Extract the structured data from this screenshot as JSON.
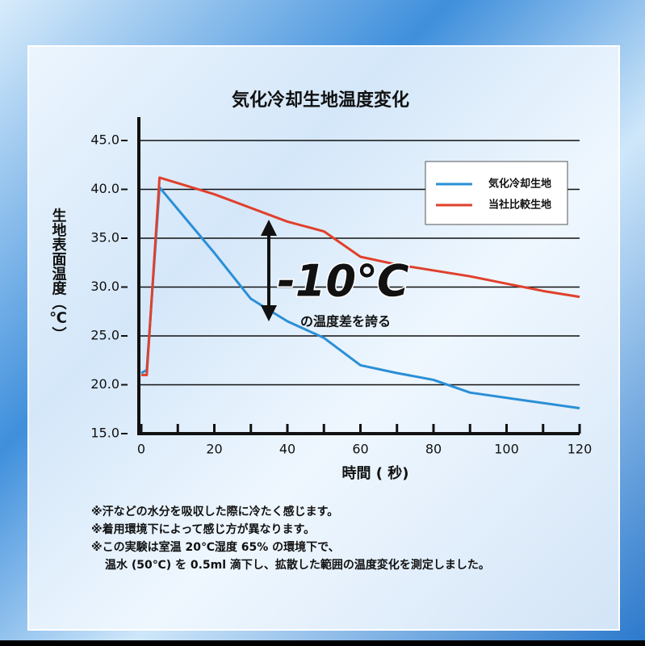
{
  "chart_data": {
    "type": "line",
    "title": "気化冷却生地温度変化",
    "x_label": "時間 ( 秒)",
    "y_label": "生地表面温度（℃）",
    "xlim": [
      0,
      120
    ],
    "ylim": [
      15,
      45
    ],
    "xticks": [
      0,
      20,
      40,
      60,
      80,
      100,
      120
    ],
    "xticks_minor": [
      10,
      30,
      50,
      70,
      90,
      110
    ],
    "yticks": [
      {
        "value": 15,
        "label": "15.0"
      },
      {
        "value": 20,
        "label": "20.0"
      },
      {
        "value": 25,
        "label": "25.0"
      },
      {
        "value": 30,
        "label": "30.0"
      },
      {
        "value": 35,
        "label": "35.0"
      },
      {
        "value": 40,
        "label": "40.0"
      },
      {
        "value": 45,
        "label": "45.0"
      }
    ],
    "grid": true,
    "legend": "upper right",
    "series": [
      {
        "name": "気化冷却生地",
        "color": "#2b8fd6",
        "x": [
          0,
          1.5,
          5,
          20,
          30,
          40,
          50,
          60,
          70,
          80,
          90,
          120
        ],
        "values": [
          21.2,
          21.5,
          40.2,
          33.5,
          28.8,
          26.5,
          24.8,
          22.0,
          21.2,
          20.5,
          19.2,
          17.6
        ]
      },
      {
        "name": "当社比較生地",
        "color": "#e0402c",
        "x": [
          0,
          1.5,
          5,
          20,
          40,
          50,
          60,
          70,
          90,
          110,
          120
        ],
        "values": [
          21.0,
          21.0,
          41.2,
          39.5,
          36.7,
          35.7,
          33.1,
          32.3,
          31.1,
          29.6,
          29.0
        ]
      }
    ],
    "annotation": {
      "headline": "-10℃",
      "text": "の温度差を誇る"
    },
    "notes": [
      "※汗などの水分を吸収した際に冷たく感じます。",
      "※着用環境下によって感じ方が異なります。",
      "※この実験は室温 20℃湿度 65% の環境下で、",
      "温水 (50℃) を 0.5ml 滴下し、拡散した範囲の温度変化を測定しました。"
    ]
  }
}
